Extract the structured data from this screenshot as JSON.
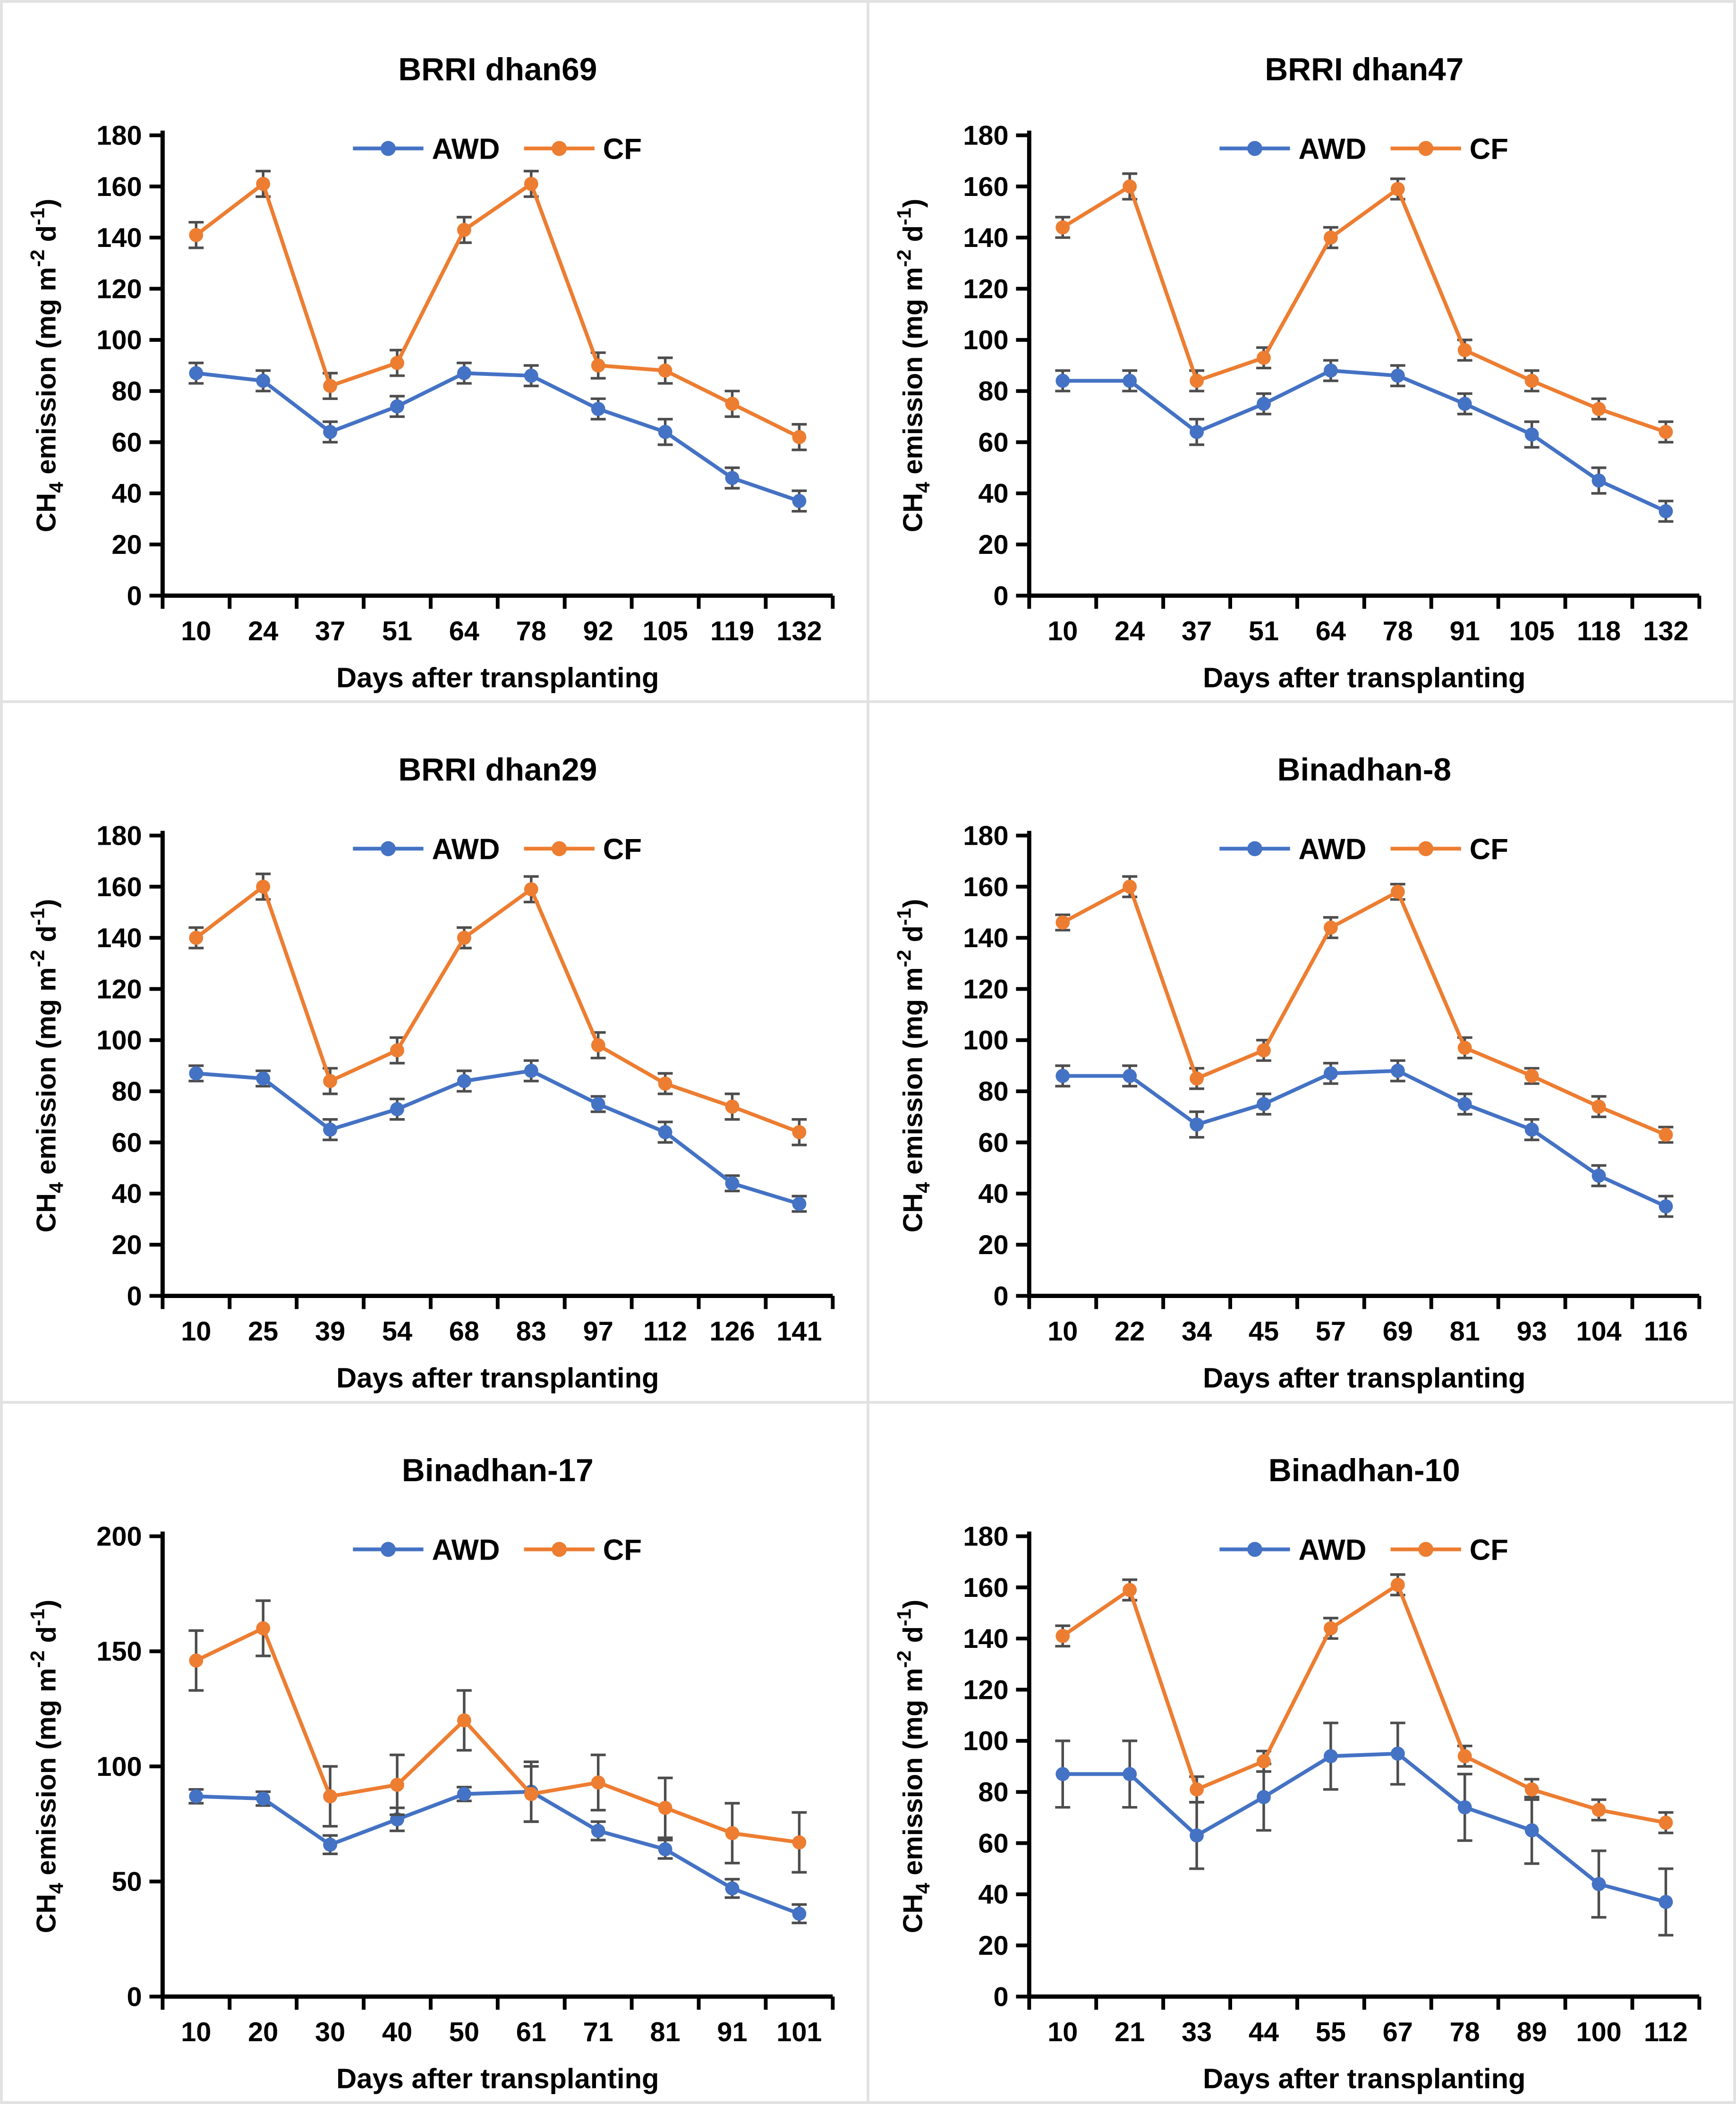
{
  "figure": {
    "xlabel": "Days after transplanting",
    "ylabel_plain": "CH4 emission (mg m-2 d-1)",
    "ylabel_rich": [
      {
        "t": "CH"
      },
      {
        "t": "4",
        "s": "sub"
      },
      {
        "t": " emission (mg m"
      },
      {
        "t": "-2",
        "s": "sup"
      },
      {
        "t": " d",
        "s": "norm"
      },
      {
        "t": "-1",
        "s": "sup"
      },
      {
        "t": ")",
        "s": "norm"
      }
    ],
    "legend": [
      {
        "name": "AWD",
        "color": "#4472C4"
      },
      {
        "name": "CF",
        "color": "#ED7D31"
      }
    ],
    "colors": {
      "awd": "#4472C4",
      "cf": "#ED7D31",
      "error_bar": "#4d4d4d",
      "axis": "#000000",
      "panel_border": "#e2e2e2",
      "text": "#000000"
    }
  },
  "chart_data": [
    {
      "type": "line",
      "title": "BRRI dhan69",
      "categories": [
        10,
        24,
        37,
        51,
        64,
        78,
        92,
        105,
        119,
        132
      ],
      "xlabel": "Days after transplanting",
      "ylabel": "CH4 emission (mg m-2 d-1)",
      "ylim": [
        0,
        180
      ],
      "ytick_step": 20,
      "grid": false,
      "legend_position": "top-center",
      "series": [
        {
          "name": "AWD",
          "color": "#4472C4",
          "values": [
            87,
            84,
            64,
            74,
            87,
            86,
            73,
            64,
            46,
            37
          ],
          "errors": [
            4,
            4,
            4,
            4,
            4,
            4,
            4,
            5,
            4,
            4
          ]
        },
        {
          "name": "CF",
          "color": "#ED7D31",
          "values": [
            141,
            161,
            82,
            91,
            143,
            161,
            90,
            88,
            75,
            62
          ],
          "errors": [
            5,
            5,
            5,
            5,
            5,
            5,
            5,
            5,
            5,
            5
          ]
        }
      ]
    },
    {
      "type": "line",
      "title": "BRRI dhan47",
      "categories": [
        10,
        24,
        37,
        51,
        64,
        78,
        91,
        105,
        118,
        132
      ],
      "xlabel": "Days after transplanting",
      "ylabel": "CH4 emission (mg m-2 d-1)",
      "ylim": [
        0,
        180
      ],
      "ytick_step": 20,
      "grid": false,
      "legend_position": "top-center",
      "series": [
        {
          "name": "AWD",
          "color": "#4472C4",
          "values": [
            84,
            84,
            64,
            75,
            88,
            86,
            75,
            63,
            45,
            33
          ],
          "errors": [
            4,
            4,
            5,
            4,
            4,
            4,
            4,
            5,
            5,
            4
          ]
        },
        {
          "name": "CF",
          "color": "#ED7D31",
          "values": [
            144,
            160,
            84,
            93,
            140,
            159,
            96,
            84,
            73,
            64
          ],
          "errors": [
            4,
            5,
            4,
            4,
            4,
            4,
            4,
            4,
            4,
            4
          ]
        }
      ]
    },
    {
      "type": "line",
      "title": "BRRI dhan29",
      "categories": [
        10,
        25,
        39,
        54,
        68,
        83,
        97,
        112,
        126,
        141
      ],
      "xlabel": "Days after transplanting",
      "ylabel": "CH4 emission (mg m-2 d-1)",
      "ylim": [
        0,
        180
      ],
      "ytick_step": 20,
      "grid": false,
      "legend_position": "top-center",
      "series": [
        {
          "name": "AWD",
          "color": "#4472C4",
          "values": [
            87,
            85,
            65,
            73,
            84,
            88,
            75,
            64,
            44,
            36
          ],
          "errors": [
            3,
            3,
            4,
            4,
            4,
            4,
            3,
            4,
            3,
            3
          ]
        },
        {
          "name": "CF",
          "color": "#ED7D31",
          "values": [
            140,
            160,
            84,
            96,
            140,
            159,
            98,
            83,
            74,
            64
          ],
          "errors": [
            4,
            5,
            5,
            5,
            4,
            5,
            5,
            4,
            5,
            5
          ]
        }
      ]
    },
    {
      "type": "line",
      "title": "Binadhan-8",
      "categories": [
        10,
        22,
        34,
        45,
        57,
        69,
        81,
        93,
        104,
        116
      ],
      "xlabel": "Days after transplanting",
      "ylabel": "CH4 emission (mg m-2 d-1)",
      "ylim": [
        0,
        180
      ],
      "ytick_step": 20,
      "grid": false,
      "legend_position": "top-center",
      "series": [
        {
          "name": "AWD",
          "color": "#4472C4",
          "values": [
            86,
            86,
            67,
            75,
            87,
            88,
            75,
            65,
            47,
            35
          ],
          "errors": [
            4,
            4,
            5,
            4,
            4,
            4,
            4,
            4,
            4,
            4
          ]
        },
        {
          "name": "CF",
          "color": "#ED7D31",
          "values": [
            146,
            160,
            85,
            96,
            144,
            158,
            97,
            86,
            74,
            63
          ],
          "errors": [
            3,
            4,
            4,
            4,
            4,
            3,
            4,
            3,
            4,
            3
          ]
        }
      ]
    },
    {
      "type": "line",
      "title": "Binadhan-17",
      "categories": [
        10,
        20,
        30,
        40,
        50,
        61,
        71,
        81,
        91,
        101
      ],
      "xlabel": "Days after transplanting",
      "ylabel": "CH4 emission (mg m-2 d-1)",
      "ylim": [
        0,
        200
      ],
      "ytick_step": 50,
      "grid": false,
      "legend_position": "top-center",
      "series": [
        {
          "name": "AWD",
          "color": "#4472C4",
          "values": [
            87,
            86,
            66,
            77,
            88,
            89,
            72,
            64,
            47,
            36
          ],
          "errors": [
            3,
            3,
            4,
            5,
            3,
            13,
            4,
            4,
            4,
            4
          ]
        },
        {
          "name": "CF",
          "color": "#ED7D31",
          "values": [
            146,
            160,
            87,
            92,
            120,
            88,
            93,
            82,
            71,
            67
          ],
          "errors": [
            13,
            12,
            13,
            13,
            13,
            12,
            12,
            13,
            13,
            13
          ]
        }
      ]
    },
    {
      "type": "line",
      "title": "Binadhan-10",
      "categories": [
        10,
        21,
        33,
        44,
        55,
        67,
        78,
        89,
        100,
        112
      ],
      "xlabel": "Days after transplanting",
      "ylabel": "CH4 emission (mg m-2 d-1)",
      "ylim": [
        0,
        180
      ],
      "ytick_step": 20,
      "grid": false,
      "legend_position": "top-center",
      "series": [
        {
          "name": "AWD",
          "color": "#4472C4",
          "values": [
            87,
            87,
            63,
            78,
            94,
            95,
            74,
            65,
            44,
            37
          ],
          "errors": [
            13,
            13,
            13,
            13,
            13,
            12,
            13,
            13,
            13,
            13
          ]
        },
        {
          "name": "CF",
          "color": "#ED7D31",
          "values": [
            141,
            159,
            81,
            92,
            144,
            161,
            94,
            81,
            73,
            68
          ],
          "errors": [
            4,
            4,
            5,
            4,
            4,
            4,
            4,
            4,
            4,
            4
          ]
        }
      ]
    }
  ]
}
